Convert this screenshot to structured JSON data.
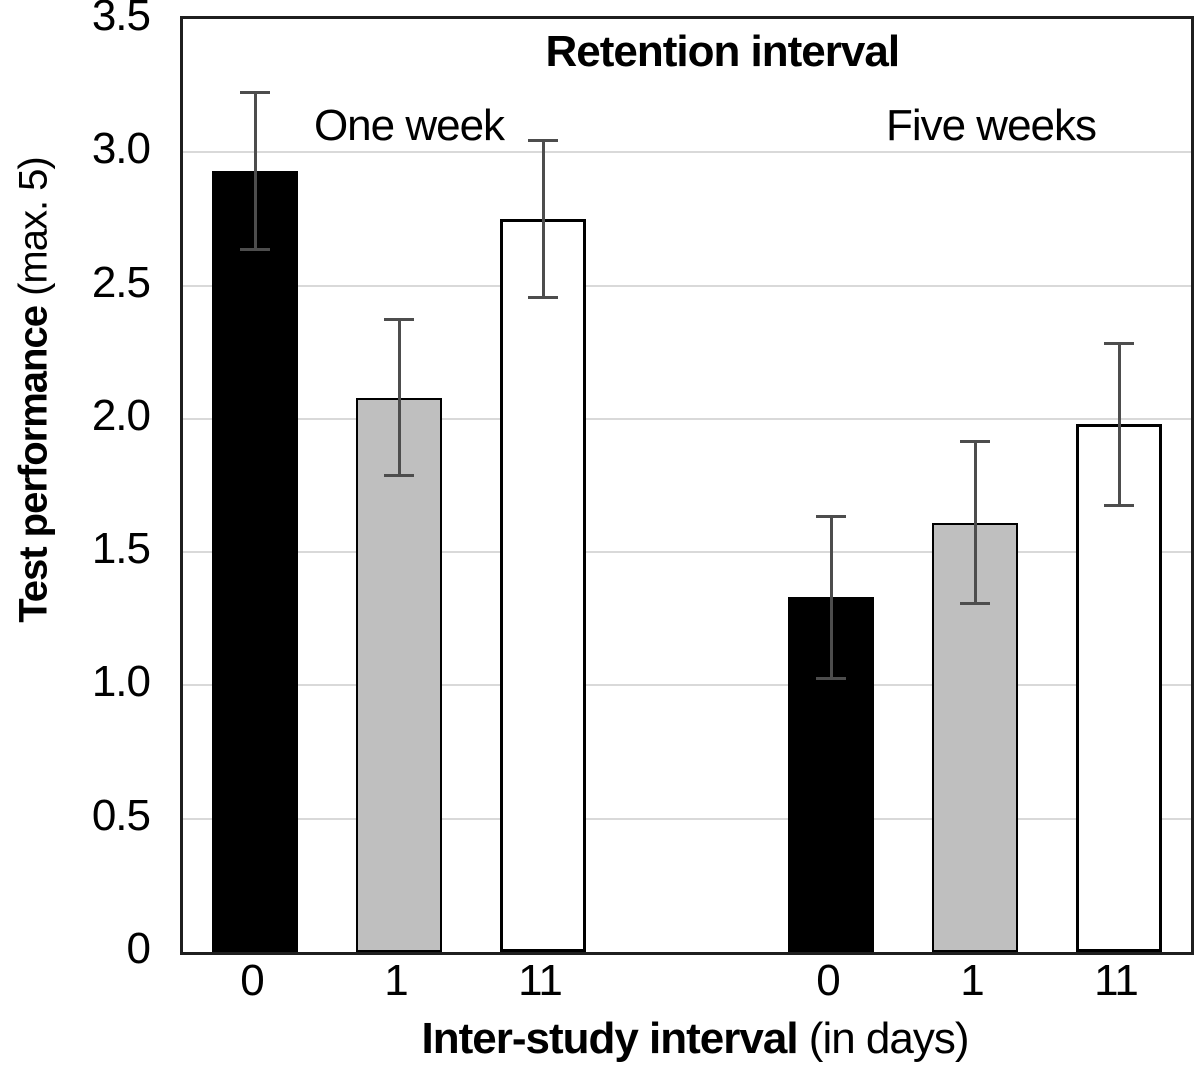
{
  "chart_data": {
    "type": "bar",
    "title": "Retention interval",
    "ylabel_bold": "Test performance",
    "ylabel_regular": " (max. 5)",
    "xlabel_bold": "Inter-study interval",
    "xlabel_regular": " (in days)",
    "ylim": [
      0,
      3.5
    ],
    "grid": true,
    "grid_step": 0.5,
    "legend_position": "none",
    "y_tick_labels": [
      "3.5",
      "3.0",
      "2.5",
      "2.0",
      "1.5",
      "1.0",
      "0.5",
      "0"
    ],
    "categories": [
      "0",
      "1",
      "11",
      "0",
      "1",
      "11"
    ],
    "groups": [
      {
        "label": "One week",
        "bars": [
          {
            "category": "0",
            "value": 2.93,
            "error": 0.3,
            "fill": "#000000"
          },
          {
            "category": "1",
            "value": 2.08,
            "error": 0.3,
            "fill": "#bfbfbf"
          },
          {
            "category": "11",
            "value": 2.75,
            "error": 0.3,
            "fill": "#ffffff"
          }
        ]
      },
      {
        "label": "Five weeks",
        "bars": [
          {
            "category": "0",
            "value": 1.33,
            "error": 0.31,
            "fill": "#000000"
          },
          {
            "category": "1",
            "value": 1.61,
            "error": 0.31,
            "fill": "#bfbfbf"
          },
          {
            "category": "11",
            "value": 1.98,
            "error": 0.31,
            "fill": "#ffffff"
          }
        ]
      }
    ],
    "colors": {
      "bar_black": "#000000",
      "bar_grey": "#bfbfbf",
      "bar_white": "#ffffff",
      "bar_border": "#000000",
      "error_bar": "#4d4d4d",
      "gridline": "#d9d9d9",
      "plot_border": "#1f1f1f"
    }
  }
}
